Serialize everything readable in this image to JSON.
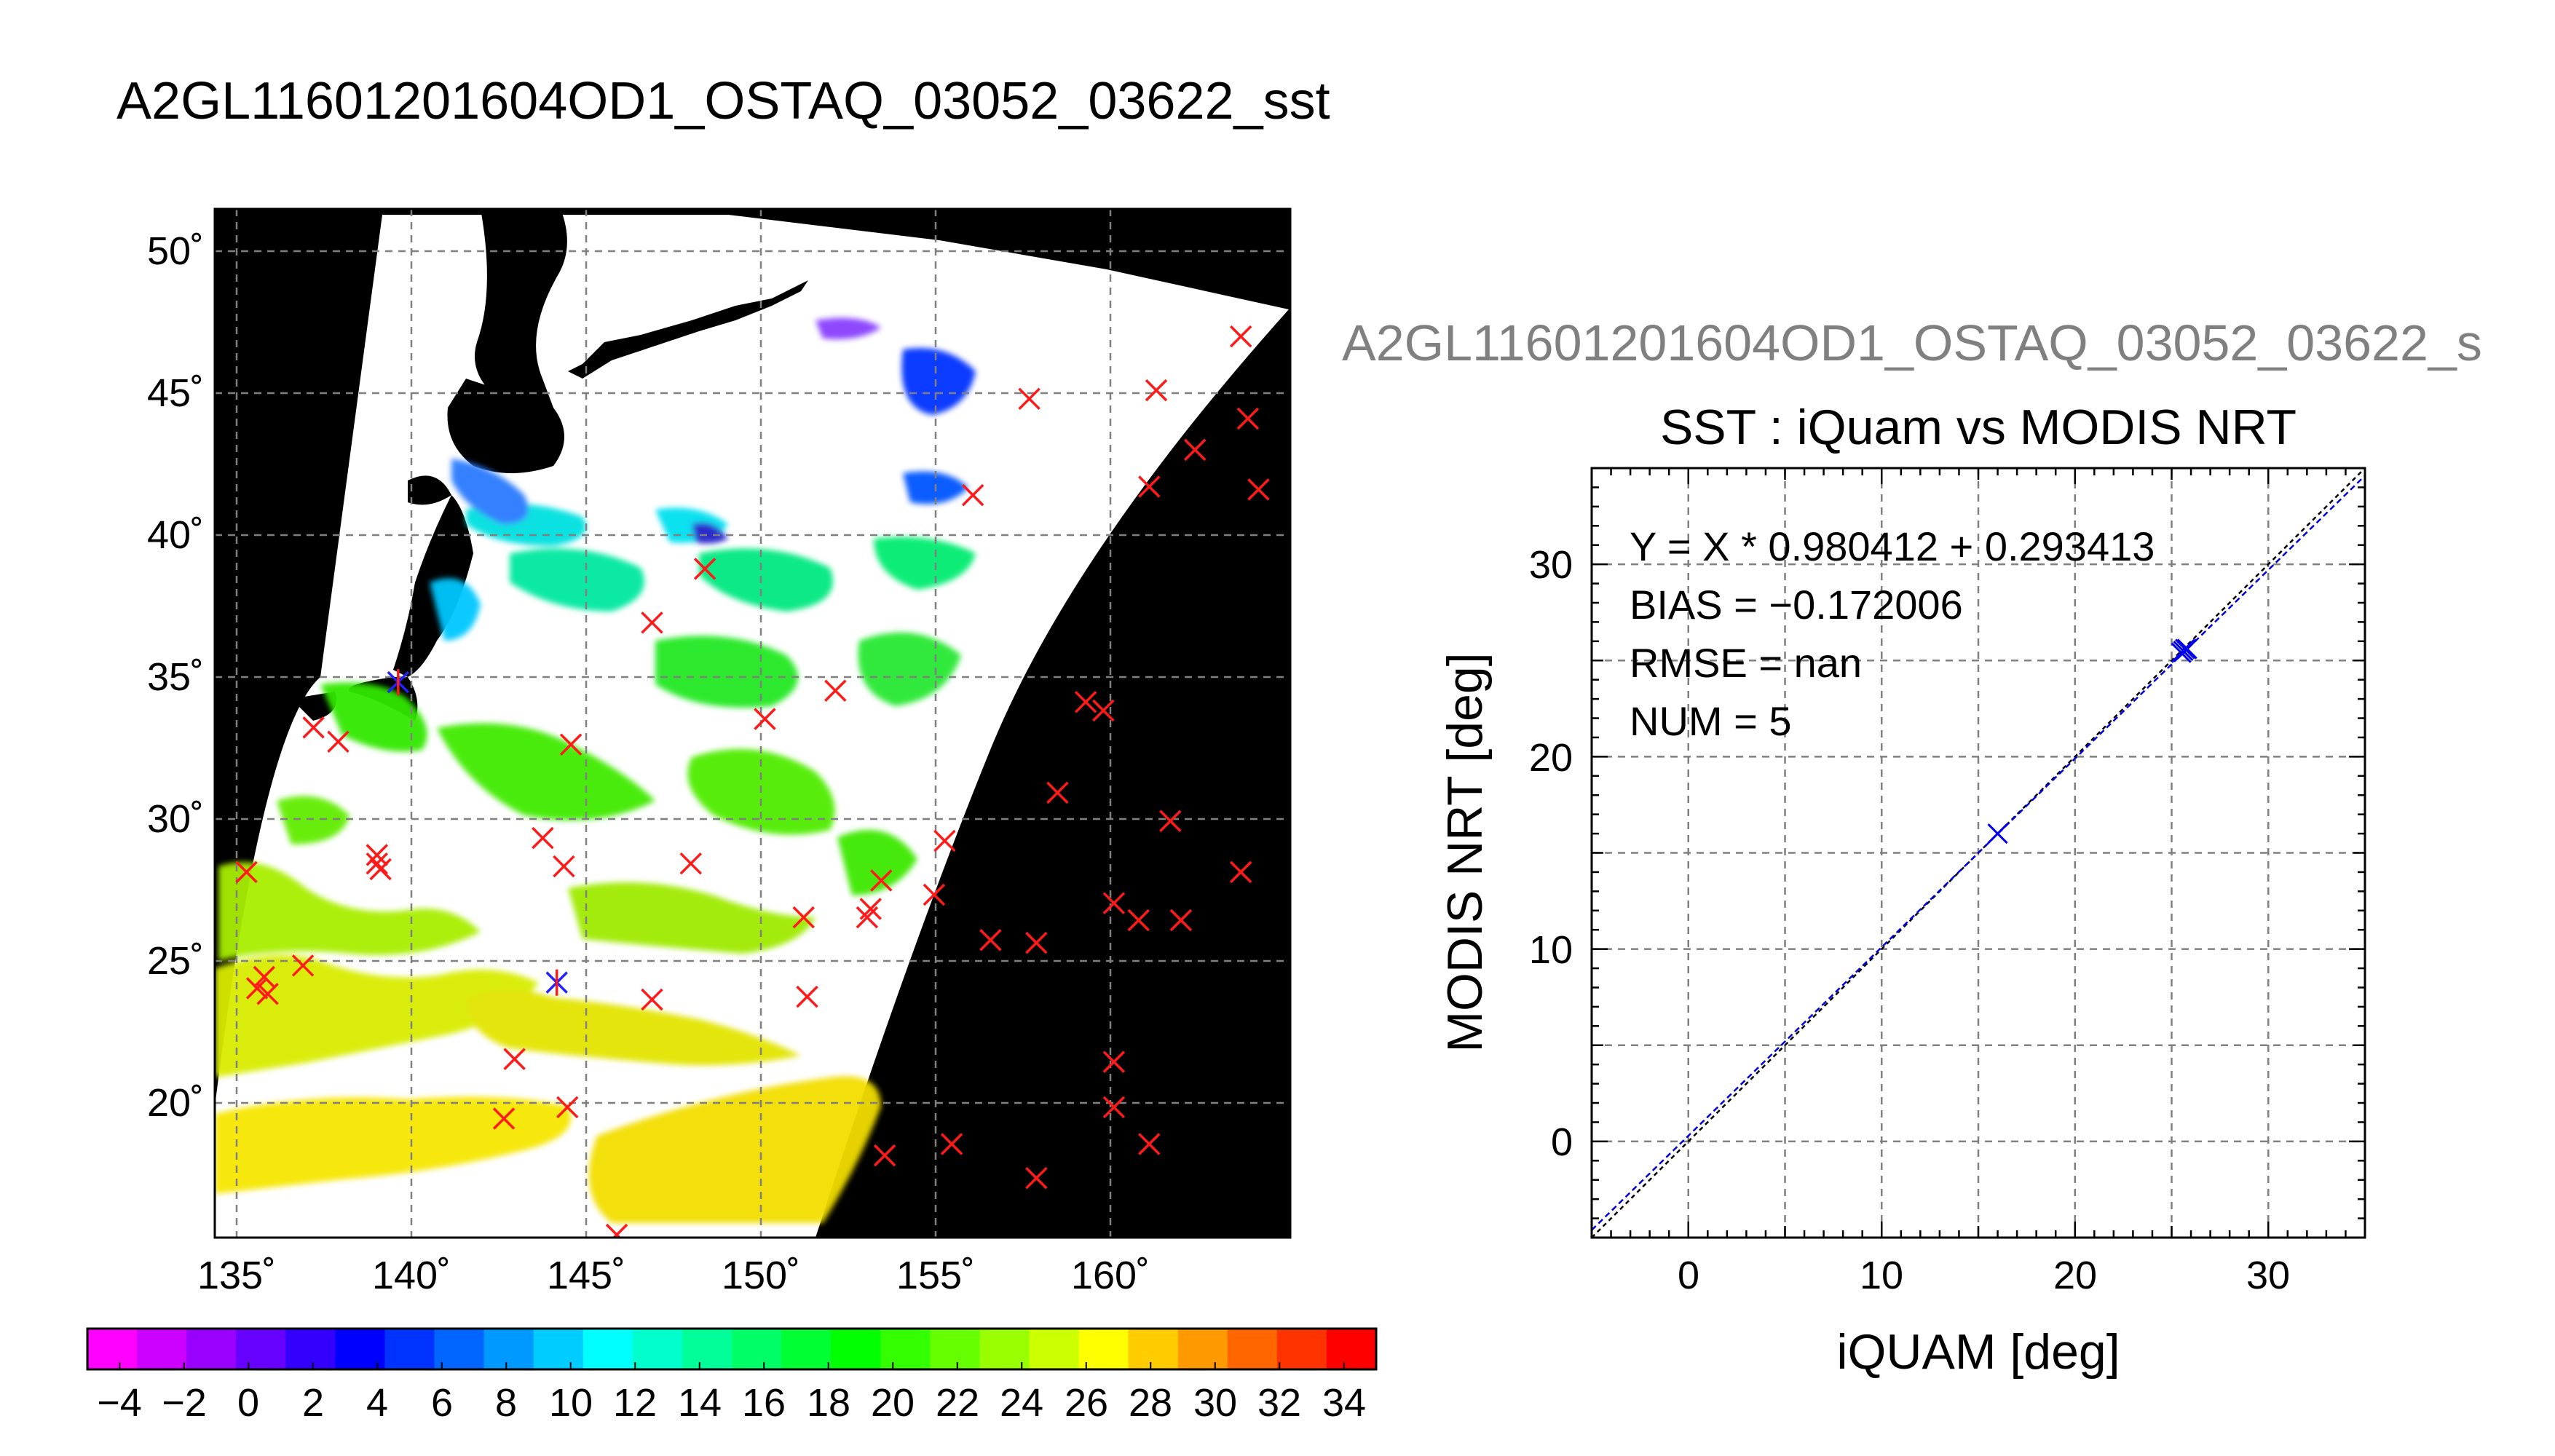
{
  "figure": {
    "main_title": "A2GL11601201604OD1_OSTAQ_03052_03622_sst",
    "secondary_title": "A2GL11601201604OD1_OSTAQ_03052_03622_s"
  },
  "chart_data": [
    {
      "type": "map",
      "lon_ticks": [
        "135˚",
        "140˚",
        "145˚",
        "150˚",
        "155˚",
        "160˚"
      ],
      "lon_tick_values": [
        135,
        140,
        145,
        150,
        155,
        160
      ],
      "lat_ticks": [
        "20˚",
        "25˚",
        "30˚",
        "35˚",
        "40˚",
        "45˚",
        "50˚"
      ],
      "lat_tick_values": [
        20,
        25,
        30,
        35,
        40,
        45,
        50
      ],
      "lon_range": [
        134.4,
        164.9
      ],
      "lat_range": [
        15.3,
        51.6
      ],
      "colorbar": {
        "tick_labels": [
          "−4",
          "−2",
          "0",
          "2",
          "4",
          "6",
          "8",
          "10",
          "12",
          "14",
          "16",
          "18",
          "20",
          "22",
          "24",
          "26",
          "28",
          "30",
          "32",
          "34"
        ],
        "tick_values": [
          -4,
          -2,
          0,
          2,
          4,
          6,
          8,
          10,
          12,
          14,
          16,
          18,
          20,
          22,
          24,
          26,
          28,
          30,
          32,
          34
        ],
        "range": [
          -5,
          35
        ],
        "colors": [
          "#ff00ff",
          "#cc00ff",
          "#9900ff",
          "#6600ff",
          "#3300ff",
          "#0000ff",
          "#0033ff",
          "#0066ff",
          "#0099ff",
          "#00ccff",
          "#00ffff",
          "#00ffcc",
          "#00ff99",
          "#00ff66",
          "#00ff33",
          "#00ff00",
          "#33ff00",
          "#66ff00",
          "#99ff00",
          "#ccff00",
          "#ffff00",
          "#ffcc00",
          "#ff9900",
          "#ff6600",
          "#ff3300",
          "#ff0000"
        ]
      },
      "match_points_red": [
        [
          163.5,
          47.1
        ],
        [
          157.5,
          44.9
        ],
        [
          161.1,
          45.2
        ],
        [
          163.7,
          44.2
        ],
        [
          162.2,
          43.1
        ],
        [
          160.9,
          41.8
        ],
        [
          164.0,
          41.7
        ],
        [
          155.9,
          41.5
        ],
        [
          148.3,
          38.9
        ],
        [
          146.8,
          37.0
        ],
        [
          152.0,
          34.6
        ],
        [
          150.0,
          33.6
        ],
        [
          159.1,
          34.2
        ],
        [
          159.6,
          33.9
        ],
        [
          144.5,
          32.7
        ],
        [
          137.2,
          33.3
        ],
        [
          137.9,
          32.8
        ],
        [
          158.3,
          31.0
        ],
        [
          161.5,
          30.0
        ],
        [
          143.7,
          29.4
        ],
        [
          144.3,
          28.4
        ],
        [
          139.0,
          28.5
        ],
        [
          139.0,
          28.8
        ],
        [
          139.1,
          28.3
        ],
        [
          135.3,
          28.2
        ],
        [
          147.9,
          28.5
        ],
        [
          153.3,
          27.9
        ],
        [
          155.1,
          29.3
        ],
        [
          154.8,
          27.4
        ],
        [
          163.5,
          28.2
        ],
        [
          151.1,
          26.6
        ],
        [
          153.0,
          26.9
        ],
        [
          152.9,
          26.6
        ],
        [
          156.4,
          25.8
        ],
        [
          157.7,
          25.7
        ],
        [
          159.9,
          27.1
        ],
        [
          160.6,
          26.5
        ],
        [
          161.8,
          26.5
        ],
        [
          136.9,
          24.9
        ],
        [
          135.8,
          24.5
        ],
        [
          135.6,
          24.1
        ],
        [
          135.9,
          23.9
        ],
        [
          146.8,
          23.7
        ],
        [
          151.2,
          23.8
        ],
        [
          142.9,
          21.6
        ],
        [
          142.6,
          19.5
        ],
        [
          144.4,
          19.9
        ],
        [
          159.9,
          21.5
        ],
        [
          159.9,
          19.9
        ],
        [
          160.9,
          18.6
        ],
        [
          155.3,
          18.6
        ],
        [
          153.4,
          18.2
        ],
        [
          157.7,
          17.4
        ],
        [
          145.8,
          15.4
        ]
      ],
      "match_points_blue": [
        [
          144.1,
          24.3
        ],
        [
          139.6,
          34.9
        ]
      ]
    },
    {
      "type": "scatter",
      "title": "SST : iQuam vs MODIS NRT",
      "xlabel": "iQUAM [deg]",
      "ylabel": "MODIS NRT [deg]",
      "xlim": [
        -5,
        35
      ],
      "ylim": [
        -5,
        35
      ],
      "x_ticks": [
        0,
        10,
        20,
        30
      ],
      "y_ticks": [
        0,
        10,
        20,
        30
      ],
      "grid": true,
      "stats": [
        "Y = X * 0.980412 + 0.293413",
        "BIAS = −0.172006",
        "RMSE = nan",
        "NUM = 5"
      ],
      "points": [
        [
          16.0,
          16.0
        ],
        [
          25.6,
          25.5
        ],
        [
          25.7,
          25.6
        ],
        [
          25.5,
          25.4
        ],
        [
          25.8,
          25.6
        ]
      ],
      "fit": {
        "slope": 0.980412,
        "intercept": 0.293413
      }
    }
  ]
}
